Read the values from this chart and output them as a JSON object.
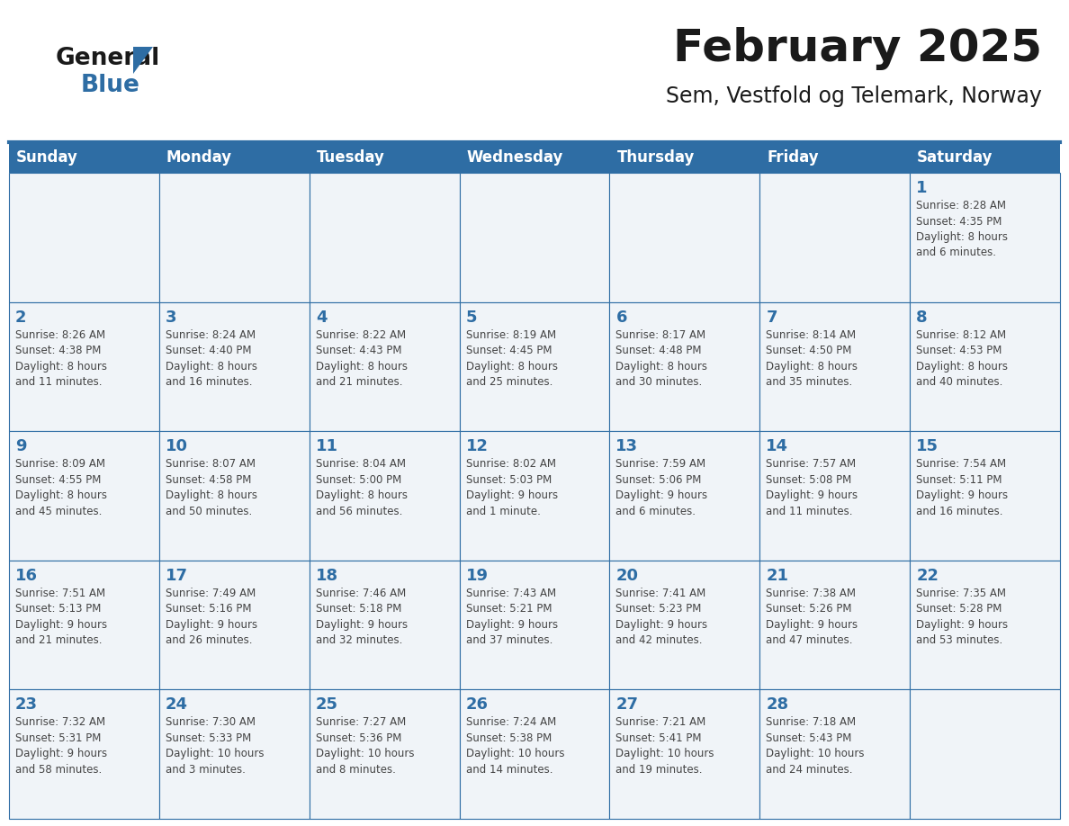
{
  "title": "February 2025",
  "subtitle": "Sem, Vestfold og Telemark, Norway",
  "days_of_week": [
    "Sunday",
    "Monday",
    "Tuesday",
    "Wednesday",
    "Thursday",
    "Friday",
    "Saturday"
  ],
  "header_bg": "#2E6DA4",
  "header_text": "#FFFFFF",
  "cell_bg": "#F0F4F8",
  "border_color": "#2E6DA4",
  "title_color": "#1a1a1a",
  "subtitle_color": "#1a1a1a",
  "day_num_color": "#2E6DA4",
  "cell_text_color": "#444444",
  "logo_text_color": "#1a1a1a",
  "logo_blue_color": "#2E6DA4",
  "weeks": [
    [
      {
        "day": null,
        "info": null
      },
      {
        "day": null,
        "info": null
      },
      {
        "day": null,
        "info": null
      },
      {
        "day": null,
        "info": null
      },
      {
        "day": null,
        "info": null
      },
      {
        "day": null,
        "info": null
      },
      {
        "day": 1,
        "info": "Sunrise: 8:28 AM\nSunset: 4:35 PM\nDaylight: 8 hours\nand 6 minutes."
      }
    ],
    [
      {
        "day": 2,
        "info": "Sunrise: 8:26 AM\nSunset: 4:38 PM\nDaylight: 8 hours\nand 11 minutes."
      },
      {
        "day": 3,
        "info": "Sunrise: 8:24 AM\nSunset: 4:40 PM\nDaylight: 8 hours\nand 16 minutes."
      },
      {
        "day": 4,
        "info": "Sunrise: 8:22 AM\nSunset: 4:43 PM\nDaylight: 8 hours\nand 21 minutes."
      },
      {
        "day": 5,
        "info": "Sunrise: 8:19 AM\nSunset: 4:45 PM\nDaylight: 8 hours\nand 25 minutes."
      },
      {
        "day": 6,
        "info": "Sunrise: 8:17 AM\nSunset: 4:48 PM\nDaylight: 8 hours\nand 30 minutes."
      },
      {
        "day": 7,
        "info": "Sunrise: 8:14 AM\nSunset: 4:50 PM\nDaylight: 8 hours\nand 35 minutes."
      },
      {
        "day": 8,
        "info": "Sunrise: 8:12 AM\nSunset: 4:53 PM\nDaylight: 8 hours\nand 40 minutes."
      }
    ],
    [
      {
        "day": 9,
        "info": "Sunrise: 8:09 AM\nSunset: 4:55 PM\nDaylight: 8 hours\nand 45 minutes."
      },
      {
        "day": 10,
        "info": "Sunrise: 8:07 AM\nSunset: 4:58 PM\nDaylight: 8 hours\nand 50 minutes."
      },
      {
        "day": 11,
        "info": "Sunrise: 8:04 AM\nSunset: 5:00 PM\nDaylight: 8 hours\nand 56 minutes."
      },
      {
        "day": 12,
        "info": "Sunrise: 8:02 AM\nSunset: 5:03 PM\nDaylight: 9 hours\nand 1 minute."
      },
      {
        "day": 13,
        "info": "Sunrise: 7:59 AM\nSunset: 5:06 PM\nDaylight: 9 hours\nand 6 minutes."
      },
      {
        "day": 14,
        "info": "Sunrise: 7:57 AM\nSunset: 5:08 PM\nDaylight: 9 hours\nand 11 minutes."
      },
      {
        "day": 15,
        "info": "Sunrise: 7:54 AM\nSunset: 5:11 PM\nDaylight: 9 hours\nand 16 minutes."
      }
    ],
    [
      {
        "day": 16,
        "info": "Sunrise: 7:51 AM\nSunset: 5:13 PM\nDaylight: 9 hours\nand 21 minutes."
      },
      {
        "day": 17,
        "info": "Sunrise: 7:49 AM\nSunset: 5:16 PM\nDaylight: 9 hours\nand 26 minutes."
      },
      {
        "day": 18,
        "info": "Sunrise: 7:46 AM\nSunset: 5:18 PM\nDaylight: 9 hours\nand 32 minutes."
      },
      {
        "day": 19,
        "info": "Sunrise: 7:43 AM\nSunset: 5:21 PM\nDaylight: 9 hours\nand 37 minutes."
      },
      {
        "day": 20,
        "info": "Sunrise: 7:41 AM\nSunset: 5:23 PM\nDaylight: 9 hours\nand 42 minutes."
      },
      {
        "day": 21,
        "info": "Sunrise: 7:38 AM\nSunset: 5:26 PM\nDaylight: 9 hours\nand 47 minutes."
      },
      {
        "day": 22,
        "info": "Sunrise: 7:35 AM\nSunset: 5:28 PM\nDaylight: 9 hours\nand 53 minutes."
      }
    ],
    [
      {
        "day": 23,
        "info": "Sunrise: 7:32 AM\nSunset: 5:31 PM\nDaylight: 9 hours\nand 58 minutes."
      },
      {
        "day": 24,
        "info": "Sunrise: 7:30 AM\nSunset: 5:33 PM\nDaylight: 10 hours\nand 3 minutes."
      },
      {
        "day": 25,
        "info": "Sunrise: 7:27 AM\nSunset: 5:36 PM\nDaylight: 10 hours\nand 8 minutes."
      },
      {
        "day": 26,
        "info": "Sunrise: 7:24 AM\nSunset: 5:38 PM\nDaylight: 10 hours\nand 14 minutes."
      },
      {
        "day": 27,
        "info": "Sunrise: 7:21 AM\nSunset: 5:41 PM\nDaylight: 10 hours\nand 19 minutes."
      },
      {
        "day": 28,
        "info": "Sunrise: 7:18 AM\nSunset: 5:43 PM\nDaylight: 10 hours\nand 24 minutes."
      },
      {
        "day": null,
        "info": null
      }
    ]
  ]
}
